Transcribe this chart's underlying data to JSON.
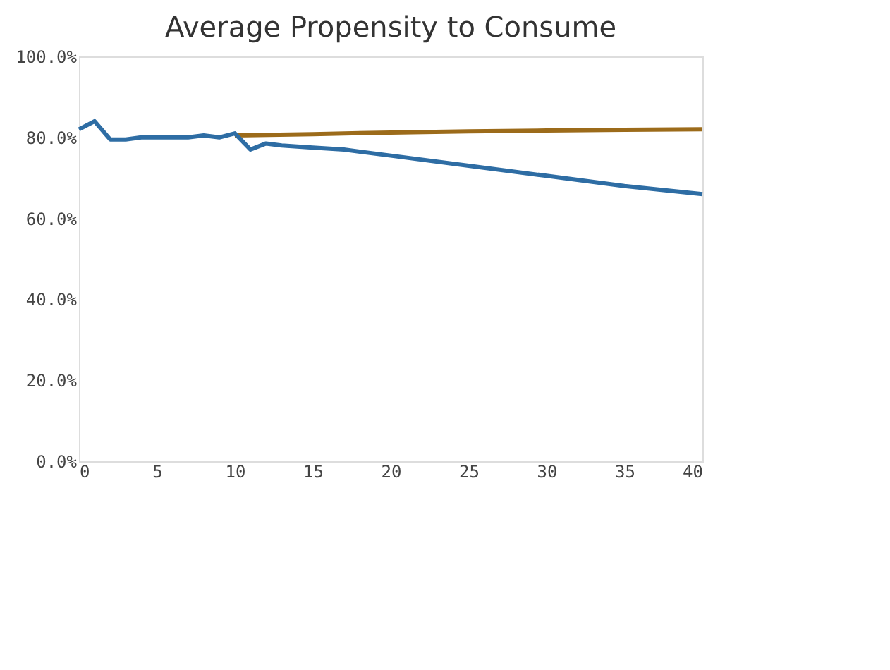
{
  "chart_data": {
    "type": "line",
    "title": "Average Propensity to Consume",
    "series": [
      {
        "color": "#9c6b1a",
        "x": [
          10,
          15,
          20,
          25,
          30,
          35,
          40
        ],
        "values": [
          80.5,
          80.8,
          81.2,
          81.5,
          81.7,
          81.9,
          82
        ]
      },
      {
        "color": "#2e6da4",
        "x": [
          0,
          1,
          2,
          3,
          4,
          5,
          6,
          7,
          8,
          9,
          10,
          11,
          12,
          13,
          15,
          17,
          20,
          25,
          30,
          35,
          40
        ],
        "values": [
          82,
          84,
          79.5,
          79.5,
          80,
          80,
          80,
          80,
          80.5,
          80,
          81,
          77,
          78.5,
          78,
          77.5,
          77,
          75.5,
          73,
          70.5,
          68,
          66
        ]
      }
    ],
    "xlim": [
      0,
      40
    ],
    "xticks": [
      0,
      5,
      10,
      15,
      20,
      25,
      30,
      35,
      40
    ],
    "ylim": [
      0,
      100
    ],
    "yticks": [
      {
        "value": 0,
        "label": "0.0%"
      },
      {
        "value": 20,
        "label": "20.0%"
      },
      {
        "value": 40,
        "label": "40.0%"
      },
      {
        "value": 60,
        "label": "60.0%"
      },
      {
        "value": 80,
        "label": "80.0%"
      },
      {
        "value": 100,
        "label": "100.0%"
      }
    ],
    "grid": false,
    "marker": "none",
    "line_style": "solid"
  }
}
